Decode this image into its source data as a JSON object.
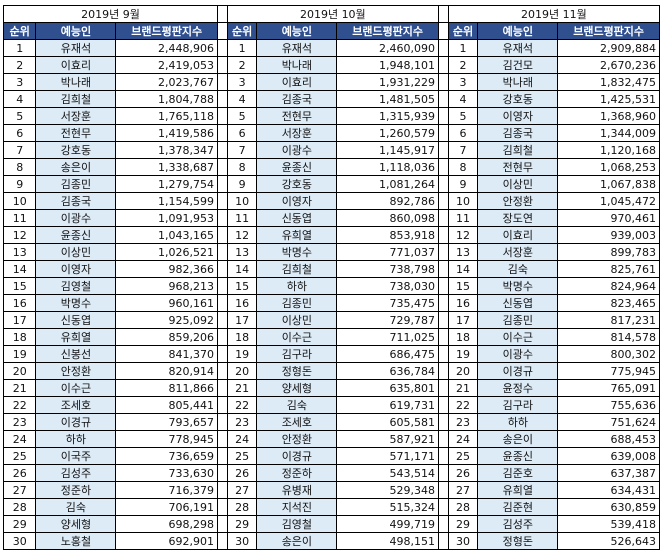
{
  "months": [
    "2019년 9월",
    "2019년 10월",
    "2019년 11월"
  ],
  "headers": [
    "순위",
    "예능인",
    "브랜드평판지수"
  ],
  "rows": [
    [
      "1",
      "유재석",
      "2,448,906",
      "1",
      "유재석",
      "2,460,090",
      "1",
      "유재석",
      "2,909,884"
    ],
    [
      "2",
      "이효리",
      "2,419,053",
      "2",
      "박나래",
      "1,948,101",
      "2",
      "김건모",
      "2,670,236"
    ],
    [
      "3",
      "박나래",
      "2,023,767",
      "3",
      "이효리",
      "1,931,229",
      "3",
      "박나래",
      "1,832,475"
    ],
    [
      "4",
      "김희철",
      "1,804,788",
      "4",
      "김종국",
      "1,481,505",
      "4",
      "강호동",
      "1,425,531"
    ],
    [
      "5",
      "서장훈",
      "1,765,118",
      "5",
      "전현무",
      "1,315,939",
      "5",
      "이영자",
      "1,368,960"
    ],
    [
      "6",
      "전현무",
      "1,419,586",
      "6",
      "서장훈",
      "1,260,579",
      "6",
      "김종국",
      "1,344,009"
    ],
    [
      "7",
      "강호동",
      "1,378,347",
      "7",
      "이광수",
      "1,145,917",
      "7",
      "김희철",
      "1,120,168"
    ],
    [
      "8",
      "송은이",
      "1,338,687",
      "8",
      "윤종신",
      "1,118,036",
      "8",
      "전현무",
      "1,068,253"
    ],
    [
      "9",
      "김종민",
      "1,279,754",
      "9",
      "강호동",
      "1,081,264",
      "9",
      "이상민",
      "1,067,838"
    ],
    [
      "10",
      "김종국",
      "1,154,599",
      "10",
      "이영자",
      "892,786",
      "10",
      "안정환",
      "1,045,472"
    ],
    [
      "11",
      "이광수",
      "1,091,953",
      "11",
      "신동엽",
      "860,098",
      "11",
      "장도연",
      "970,461"
    ],
    [
      "12",
      "윤종신",
      "1,043,165",
      "12",
      "유희열",
      "853,918",
      "12",
      "이효리",
      "939,003"
    ],
    [
      "13",
      "이상민",
      "1,026,521",
      "13",
      "박명수",
      "771,037",
      "13",
      "서장훈",
      "899,783"
    ],
    [
      "14",
      "이영자",
      "982,366",
      "14",
      "김희철",
      "738,798",
      "14",
      "김숙",
      "825,761"
    ],
    [
      "15",
      "김영철",
      "968,213",
      "15",
      "하하",
      "738,030",
      "15",
      "박명수",
      "824,964"
    ],
    [
      "16",
      "박명수",
      "960,161",
      "16",
      "김종민",
      "735,475",
      "16",
      "신동엽",
      "823,465"
    ],
    [
      "17",
      "신동엽",
      "925,092",
      "17",
      "이상민",
      "729,787",
      "17",
      "김종민",
      "817,231"
    ],
    [
      "18",
      "유희열",
      "859,206",
      "18",
      "이수근",
      "711,025",
      "18",
      "이수근",
      "814,578"
    ],
    [
      "19",
      "신봉선",
      "841,370",
      "19",
      "김구라",
      "686,475",
      "19",
      "이광수",
      "800,302"
    ],
    [
      "20",
      "안정환",
      "820,914",
      "20",
      "정형돈",
      "636,784",
      "20",
      "이경규",
      "775,945"
    ],
    [
      "21",
      "이수근",
      "811,866",
      "21",
      "양세형",
      "635,801",
      "21",
      "윤정수",
      "765,091"
    ],
    [
      "22",
      "조세호",
      "805,441",
      "22",
      "김숙",
      "619,731",
      "22",
      "김구라",
      "755,636"
    ],
    [
      "23",
      "이경규",
      "793,657",
      "23",
      "조세호",
      "605,581",
      "23",
      "하하",
      "751,624"
    ],
    [
      "24",
      "하하",
      "778,945",
      "24",
      "안정환",
      "587,921",
      "24",
      "송은이",
      "688,453"
    ],
    [
      "25",
      "이국주",
      "736,659",
      "25",
      "이경규",
      "571,171",
      "25",
      "윤종신",
      "639,008"
    ],
    [
      "26",
      "김성주",
      "733,630",
      "26",
      "정준하",
      "543,514",
      "26",
      "김준호",
      "637,387"
    ],
    [
      "27",
      "정준하",
      "716,379",
      "27",
      "유병재",
      "529,348",
      "27",
      "유희열",
      "634,431"
    ],
    [
      "28",
      "김숙",
      "706,191",
      "28",
      "지석진",
      "515,324",
      "28",
      "김준현",
      "630,859"
    ],
    [
      "29",
      "양세형",
      "698,298",
      "29",
      "김영철",
      "499,719",
      "29",
      "김성주",
      "539,418"
    ],
    [
      "30",
      "노홍철",
      "692,901",
      "30",
      "송은이",
      "498,151",
      "30",
      "정형돈",
      "526,643"
    ]
  ]
}
